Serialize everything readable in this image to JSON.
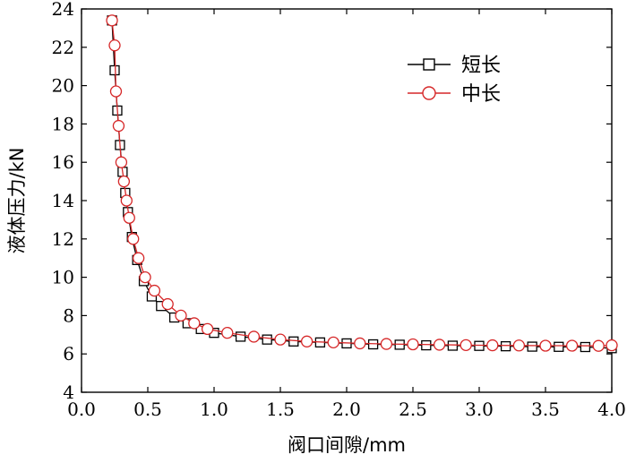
{
  "chart_data": {
    "type": "line",
    "xlabel": "阀口间隙/mm",
    "ylabel": "液体压力/kN",
    "xlim": [
      0.0,
      4.0
    ],
    "ylim": [
      4,
      24
    ],
    "x_ticks": [
      0.0,
      0.5,
      1.0,
      1.5,
      2.0,
      2.5,
      3.0,
      3.5,
      4.0
    ],
    "x_tick_labels": [
      "0.0",
      "0.5",
      "1.0",
      "1.5",
      "2.0",
      "2.5",
      "3.0",
      "3.5",
      "4.0"
    ],
    "y_ticks": [
      4,
      6,
      8,
      10,
      12,
      14,
      16,
      18,
      20,
      22,
      24
    ],
    "y_tick_labels": [
      "4",
      "6",
      "8",
      "10",
      "12",
      "14",
      "16",
      "18",
      "20",
      "22",
      "24"
    ],
    "grid": false,
    "legend_position": "top-right",
    "series": [
      {
        "name": "短长",
        "marker": "square",
        "color": "#000000",
        "x": [
          0.23,
          0.25,
          0.27,
          0.29,
          0.31,
          0.33,
          0.35,
          0.38,
          0.42,
          0.47,
          0.53,
          0.6,
          0.7,
          0.8,
          0.9,
          1.0,
          1.2,
          1.4,
          1.6,
          1.8,
          2.0,
          2.2,
          2.4,
          2.6,
          2.8,
          3.0,
          3.2,
          3.4,
          3.6,
          3.8,
          4.0
        ],
        "y": [
          23.4,
          20.8,
          18.7,
          16.9,
          15.5,
          14.4,
          13.4,
          12.1,
          10.9,
          9.8,
          9.0,
          8.5,
          7.9,
          7.6,
          7.3,
          7.1,
          6.9,
          6.75,
          6.65,
          6.6,
          6.55,
          6.5,
          6.48,
          6.45,
          6.43,
          6.42,
          6.4,
          6.38,
          6.37,
          6.36,
          6.3
        ]
      },
      {
        "name": "中长",
        "marker": "circle",
        "color": "#d62728",
        "x": [
          0.23,
          0.25,
          0.26,
          0.28,
          0.3,
          0.32,
          0.34,
          0.36,
          0.39,
          0.43,
          0.48,
          0.55,
          0.65,
          0.75,
          0.85,
          0.95,
          1.1,
          1.3,
          1.5,
          1.7,
          1.9,
          2.1,
          2.3,
          2.5,
          2.7,
          2.9,
          3.1,
          3.3,
          3.5,
          3.7,
          3.9,
          4.0
        ],
        "y": [
          23.4,
          22.1,
          19.7,
          17.9,
          16.0,
          15.0,
          14.0,
          13.1,
          12.0,
          11.0,
          10.0,
          9.3,
          8.6,
          8.0,
          7.6,
          7.3,
          7.1,
          6.9,
          6.75,
          6.65,
          6.6,
          6.55,
          6.52,
          6.5,
          6.48,
          6.46,
          6.45,
          6.44,
          6.43,
          6.43,
          6.42,
          6.45
        ]
      }
    ]
  }
}
